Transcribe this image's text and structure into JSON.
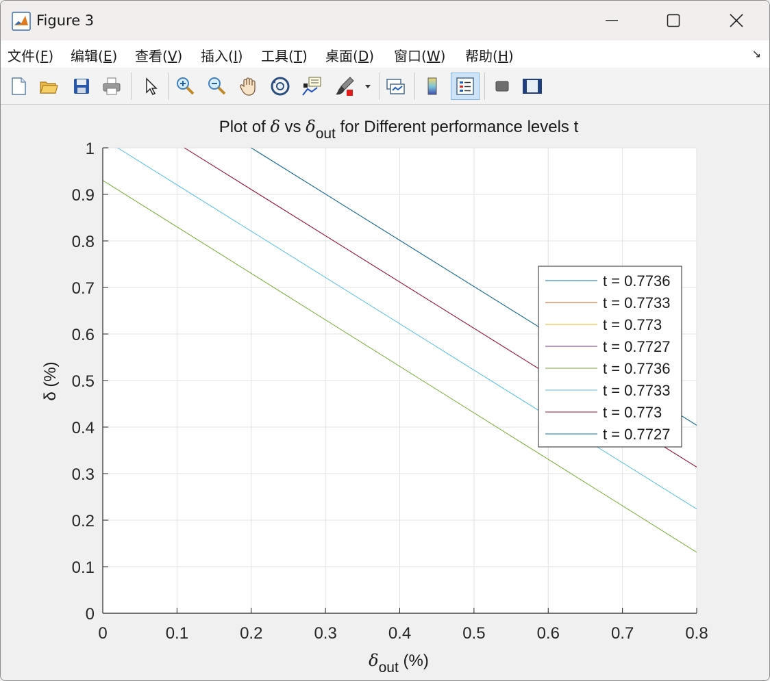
{
  "window": {
    "title": "Figure 3",
    "controls": {
      "minimize": "minimize",
      "maximize": "maximize",
      "close": "close"
    }
  },
  "menu": {
    "items": [
      {
        "label": "文件",
        "key": "F"
      },
      {
        "label": "编辑",
        "key": "E"
      },
      {
        "label": "查看",
        "key": "V"
      },
      {
        "label": "插入",
        "key": "I"
      },
      {
        "label": "工具",
        "key": "T"
      },
      {
        "label": "桌面",
        "key": "D"
      },
      {
        "label": "窗口",
        "key": "W"
      },
      {
        "label": "帮助",
        "key": "H"
      }
    ]
  },
  "toolbar": {
    "buttons": [
      {
        "name": "new-figure-icon"
      },
      {
        "name": "open-file-icon"
      },
      {
        "name": "save-icon"
      },
      {
        "name": "print-icon"
      },
      {
        "name": "select-pointer-icon"
      },
      {
        "name": "zoom-in-icon"
      },
      {
        "name": "zoom-out-icon"
      },
      {
        "name": "pan-hand-icon"
      },
      {
        "name": "rotate-3d-icon"
      },
      {
        "name": "data-cursor-icon"
      },
      {
        "name": "brush-icon"
      },
      {
        "name": "link-plot-icon"
      },
      {
        "name": "colorbar-icon"
      },
      {
        "name": "legend-icon"
      },
      {
        "name": "hide-plot-tools-icon"
      },
      {
        "name": "show-plot-tools-icon"
      }
    ]
  },
  "chart_data": {
    "type": "line",
    "title_parts": {
      "prefix": "Plot of ",
      "delta": "δ",
      "vs": " vs ",
      "delta_out": "δ",
      "out_sub": "out",
      "suffix": " for Different performance levels t"
    },
    "xlabel_parts": {
      "delta": "δ",
      "sub": "out",
      "unit": " (%)"
    },
    "ylabel": "δ (%)",
    "xlim": [
      0,
      0.8
    ],
    "ylim": [
      0,
      1
    ],
    "xticks": [
      "0",
      "0.1",
      "0.2",
      "0.3",
      "0.4",
      "0.5",
      "0.6",
      "0.7",
      "0.8"
    ],
    "yticks": [
      "0",
      "0.1",
      "0.2",
      "0.3",
      "0.4",
      "0.5",
      "0.6",
      "0.7",
      "0.8",
      "0.9",
      "1"
    ],
    "grid": true,
    "legend_position": "top-right",
    "series": [
      {
        "name": "t = 0.7736",
        "color": "#0072bd",
        "x": [
          0.2,
          0.8
        ],
        "y": [
          1.0,
          0.404
        ]
      },
      {
        "name": "t = 0.7733",
        "color": "#d95319",
        "x": [
          0.2,
          0.8
        ],
        "y": [
          1.0,
          0.404
        ]
      },
      {
        "name": "t = 0.773",
        "color": "#edb120",
        "x": [
          0.2,
          0.8
        ],
        "y": [
          1.0,
          0.404
        ]
      },
      {
        "name": "t = 0.7727",
        "color": "#7e2f8e",
        "x": [
          0.11,
          0.8
        ],
        "y": [
          1.0,
          0.314
        ]
      },
      {
        "name": "t = 0.7736",
        "color": "#77ac30",
        "x": [
          0.0,
          0.8
        ],
        "y": [
          0.93,
          0.131
        ]
      },
      {
        "name": "t = 0.7733",
        "color": "#4dbeee",
        "x": [
          0.02,
          0.8
        ],
        "y": [
          1.0,
          0.224
        ]
      },
      {
        "name": "t = 0.773",
        "color": "#a2142f",
        "x": [
          0.11,
          0.8
        ],
        "y": [
          1.0,
          0.314
        ]
      },
      {
        "name": "t = 0.7727",
        "color": "#0072bd",
        "x": [
          0.2,
          0.8
        ],
        "y": [
          1.0,
          0.404
        ]
      }
    ]
  }
}
